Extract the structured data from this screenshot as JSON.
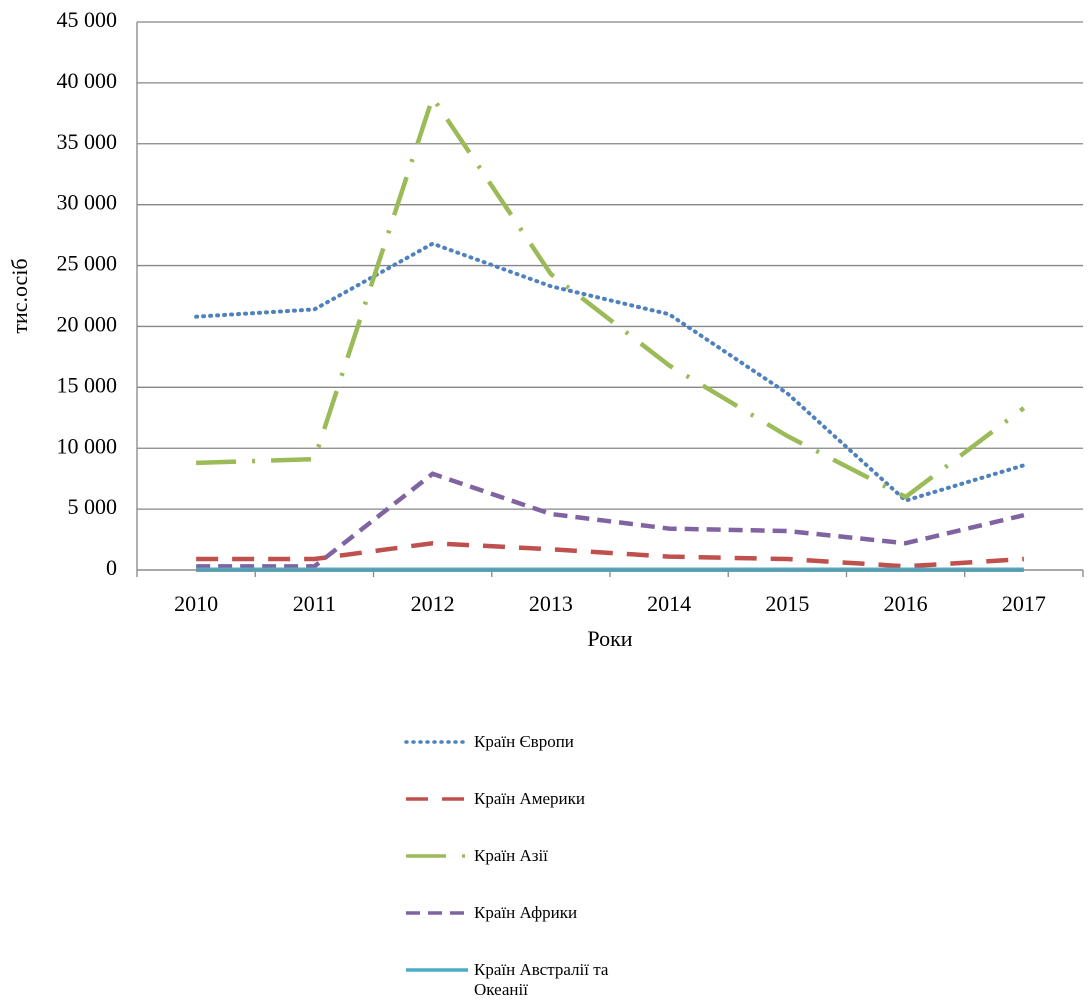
{
  "chart_data": {
    "type": "line",
    "y_label": "тис.осіб",
    "x_label": "Роки",
    "categories": [
      "2010",
      "2011",
      "2012",
      "2013",
      "2014",
      "2015",
      "2016",
      "2017"
    ],
    "series": [
      {
        "name": "Країн Європи",
        "color": "#4f81bd",
        "style": "dotted",
        "values": [
          20800,
          21400,
          26800,
          23300,
          21000,
          14500,
          5700,
          8600
        ]
      },
      {
        "name": "Країн Америки",
        "color": "#c0504d",
        "style": "dashed",
        "values": [
          900,
          900,
          2200,
          1700,
          1100,
          900,
          300,
          900
        ]
      },
      {
        "name": "Країн Азії",
        "color": "#9bbb59",
        "style": "long-dash-dot",
        "values": [
          8800,
          9100,
          38800,
          24300,
          16800,
          11000,
          6000,
          13300
        ]
      },
      {
        "name": "Країн Африки",
        "color": "#8064a2",
        "style": "short-dash",
        "values": [
          300,
          300,
          7900,
          4600,
          3400,
          3200,
          2200,
          4500
        ]
      },
      {
        "name": "Країн Австралії та Океанії",
        "color": "#4bacc6",
        "style": "solid",
        "values": [
          20,
          20,
          20,
          20,
          20,
          20,
          20,
          20
        ]
      }
    ],
    "ylim": [
      0,
      45000
    ],
    "yticks": [
      0,
      {
        "value": 5000,
        "label": "5 000"
      },
      {
        "value": 10000,
        "label": "10 000"
      },
      {
        "value": 15000,
        "label": "15 000"
      },
      {
        "value": 20000,
        "label": "20 000"
      },
      {
        "value": 25000,
        "label": "25 000"
      },
      {
        "value": 30000,
        "label": "30 000"
      },
      {
        "value": 35000,
        "label": "35 000"
      },
      {
        "value": 40000,
        "label": "40 000"
      },
      {
        "value": 45000,
        "label": "45 000"
      }
    ],
    "grid": true,
    "legend": "bottom"
  }
}
